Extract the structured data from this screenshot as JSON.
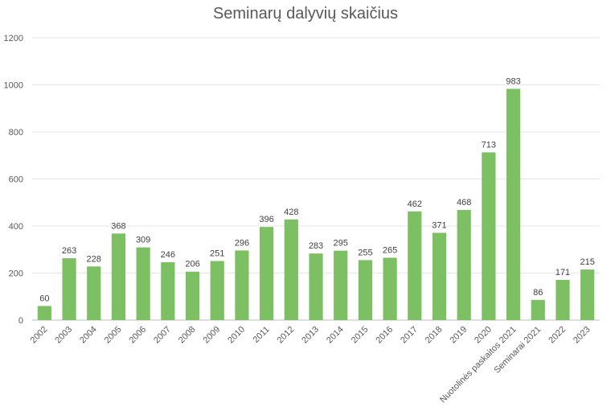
{
  "chart_data": {
    "type": "bar",
    "title": "Seminarų dalyvių skaičius",
    "categories": [
      "2002",
      "2003",
      "2004",
      "2005",
      "2006",
      "2007",
      "2008",
      "2009",
      "2010",
      "2011",
      "2012",
      "2013",
      "2014",
      "2015",
      "2016",
      "2017",
      "2018",
      "2019",
      "2020",
      "Nuotolinės paskaitos 2021",
      "Seminarai 2021",
      "2022",
      "2023"
    ],
    "values": [
      60,
      263,
      228,
      368,
      309,
      246,
      206,
      251,
      296,
      396,
      428,
      283,
      295,
      255,
      265,
      462,
      371,
      468,
      713,
      983,
      86,
      171,
      215
    ],
    "ylim": [
      0,
      1200
    ],
    "yticks": [
      0,
      200,
      400,
      600,
      800,
      1000,
      1200
    ],
    "bar_color": "#7dbf63",
    "grid": true,
    "legend": "none"
  }
}
